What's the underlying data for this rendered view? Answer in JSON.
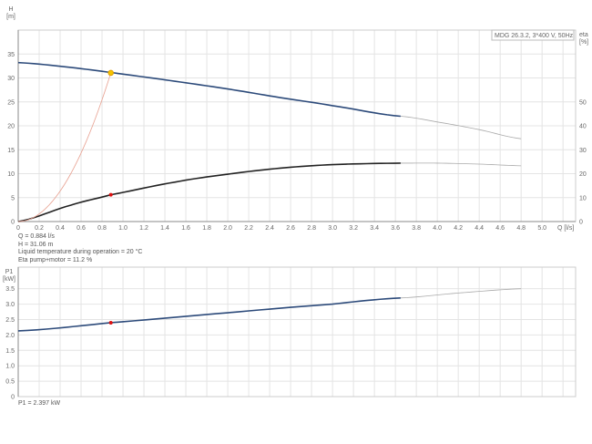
{
  "chart_data": [
    {
      "type": "line",
      "legend_label": "MDG 26.3.2, 3*400 V, 50Hz",
      "xlabel": "Q [l/s]",
      "ylabel": "H\n[m]",
      "ylabel_right": "eta\n[%]",
      "xlim": [
        0,
        5.32
      ],
      "ylim": [
        0,
        40
      ],
      "ylim_right": [
        0,
        80
      ],
      "grid": true,
      "x_ticks": [
        "0",
        "0.2",
        "0.4",
        "0.6",
        "0.8",
        "1.0",
        "1.2",
        "1.4",
        "1.6",
        "1.8",
        "2.0",
        "2.2",
        "2.4",
        "2.6",
        "2.8",
        "3.0",
        "3.2",
        "3.4",
        "3.6",
        "3.8",
        "4.0",
        "4.2",
        "4.4",
        "4.6",
        "4.8",
        "5.0"
      ],
      "y_ticks": [
        0,
        5,
        10,
        15,
        20,
        25,
        30,
        35
      ],
      "y_ticks_right": [
        0,
        10,
        20,
        30,
        40,
        50
      ],
      "series": [
        {
          "id": "head",
          "axis": "left",
          "color": "#2c4a7a",
          "x": [
            0,
            0.5,
            1.0,
            1.5,
            2.0,
            2.5,
            3.0,
            3.65
          ],
          "y": [
            33.2,
            32.2,
            30.8,
            29.3,
            27.7,
            25.9,
            24.2,
            22.0
          ],
          "extension": {
            "color": "#aaaaaa",
            "x": [
              3.65,
              4.0,
              4.4,
              4.8
            ],
            "y": [
              22.0,
              20.8,
              19.2,
              17.3
            ]
          }
        },
        {
          "id": "eta",
          "axis": "right",
          "color": "#222222",
          "x": [
            0,
            0.5,
            0.884,
            1.5,
            2.0,
            2.5,
            3.0,
            3.65
          ],
          "y": [
            0,
            6.8,
            11.2,
            16.5,
            19.8,
            22.3,
            23.8,
            24.4
          ],
          "extension": {
            "color": "#aaaaaa",
            "x": [
              3.65,
              4.0,
              4.4,
              4.8
            ],
            "y": [
              24.4,
              24.4,
              24.0,
              23.3
            ]
          }
        },
        {
          "id": "system",
          "axis": "left",
          "color": "#e8a090",
          "formula": "H = 39.75 * Q^2",
          "x_range": [
            0,
            0.884
          ]
        }
      ],
      "operating_point": {
        "q": 0.884,
        "h": 31.06,
        "eta": 11.2,
        "head_marker_color": "#f5c400",
        "eta_marker_color": "#dd1111"
      }
    },
    {
      "type": "line",
      "ylabel": "P1\n[kW]",
      "xlim": [
        0,
        5.32
      ],
      "ylim": [
        0,
        4.2
      ],
      "grid": true,
      "y_ticks": [
        "0",
        "0.5",
        "1.0",
        "1.5",
        "2.0",
        "2.5",
        "3.0",
        "3.5"
      ],
      "series": [
        {
          "id": "p1",
          "color": "#2c4a7a",
          "x": [
            0,
            0.884,
            2.0,
            3.0,
            3.65
          ],
          "y": [
            2.13,
            2.397,
            2.72,
            3.0,
            3.2
          ],
          "extension": {
            "color": "#aaaaaa",
            "x": [
              3.65,
              4.2,
              4.8
            ],
            "y": [
              3.2,
              3.36,
              3.5
            ]
          }
        }
      ],
      "operating_point": {
        "q": 0.884,
        "p1": 2.397,
        "marker_color": "#dd1111"
      }
    }
  ],
  "info": {
    "q": "Q = 0.884 l/s",
    "h": "H = 31.06 m",
    "temp": "Liquid temperature during operation = 20 °C",
    "eta": "Eta pump+motor = 11.2 %",
    "p1": "P1 = 2.397 kW"
  }
}
